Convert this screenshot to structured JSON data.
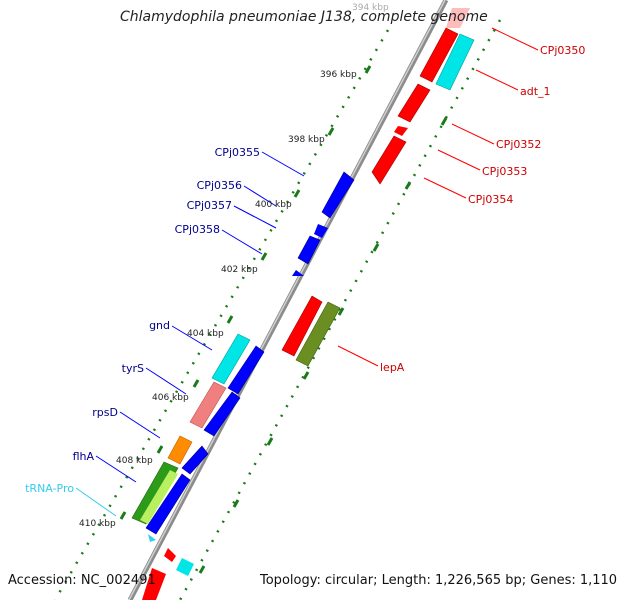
{
  "title": "Chlamydophila pneumoniae J138, complete genome",
  "accession": "Accession: NC_002491",
  "summary": "Topology: circular; Length: 1,226,565 bp; Genes: 1,110",
  "colors": {
    "forward_gene": "#ff0000",
    "reverse_gene": "#0000ff",
    "tick": "#1a7a1a",
    "backbone": "#8c8c8c",
    "cyan_gene": "#00e5e5",
    "olive_gene": "#6b8e23",
    "pink_gene": "#f08080",
    "orange_gene": "#ff8c00",
    "green_gene": "#2e9a1a",
    "trna": "#33ccee"
  },
  "scale_labels": [
    "394 kbp",
    "396 kbp",
    "398 kbp",
    "400 kbp",
    "402 kbp",
    "404 kbp",
    "406 kbp",
    "408 kbp",
    "410 kbp"
  ],
  "gene_labels_right": [
    "CPj0350",
    "adt_1",
    "CPj0352",
    "CPj0353",
    "CPj0354",
    "lepA"
  ],
  "gene_labels_left": [
    "CPj0355",
    "CPj0356",
    "CPj0357",
    "CPj0358",
    "gnd",
    "tyrS",
    "rpsD",
    "flhA",
    "tRNA-Pro"
  ]
}
